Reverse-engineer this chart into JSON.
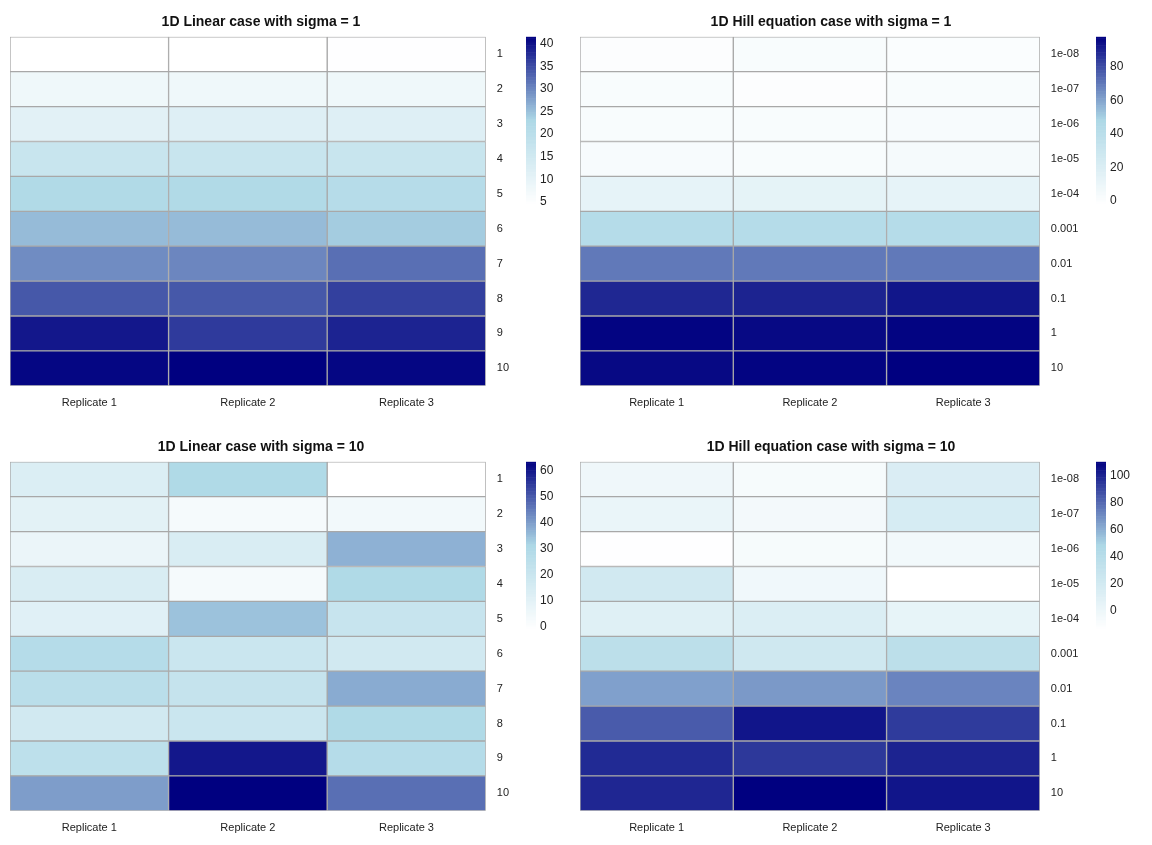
{
  "chart_data": [
    {
      "type": "heatmap",
      "title": "1D Linear case with sigma = 1",
      "categories": [
        "Replicate 1",
        "Replicate 2",
        "Replicate 3"
      ],
      "y_categories": [
        "1",
        "2",
        "3",
        "4",
        "5",
        "6",
        "7",
        "8",
        "9",
        "10"
      ],
      "cells": [
        [
          4.5,
          4.6,
          4.8
        ],
        [
          8,
          8,
          8
        ],
        [
          11,
          12,
          12
        ],
        [
          17,
          17,
          17
        ],
        [
          22,
          22,
          21
        ],
        [
          25.5,
          25.5,
          24
        ],
        [
          29.5,
          30,
          32
        ],
        [
          34,
          34,
          36
        ],
        [
          39.5,
          36.5,
          38.5
        ],
        [
          41,
          41.5,
          41
        ]
      ],
      "clim": [
        4.5,
        41.5
      ],
      "cticks": [
        5,
        10,
        15,
        20,
        25,
        30,
        35,
        40
      ]
    },
    {
      "type": "heatmap",
      "title": "1D Hill equation case with sigma = 1",
      "categories": [
        "Replicate 1",
        "Replicate 2",
        "Replicate 3"
      ],
      "y_categories": [
        "1e-08",
        "1e-07",
        "1e-06",
        "1e-05",
        "1e-04",
        "0.001",
        "0.01",
        "0.1",
        "1",
        "10"
      ],
      "cells": [
        [
          0,
          2,
          1
        ],
        [
          2,
          0,
          2
        ],
        [
          2,
          2,
          3
        ],
        [
          3,
          2,
          4
        ],
        [
          13,
          14,
          13
        ],
        [
          43,
          43,
          43
        ],
        [
          70,
          70,
          70
        ],
        [
          89,
          90,
          93
        ],
        [
          97,
          96,
          97
        ],
        [
          96,
          97,
          98
        ]
      ],
      "clim": [
        -2,
        98
      ],
      "cticks": [
        0,
        20,
        40,
        60,
        80
      ]
    },
    {
      "type": "heatmap",
      "title": "1D Linear case with sigma = 10",
      "categories": [
        "Replicate 1",
        "Replicate 2",
        "Replicate 3"
      ],
      "y_categories": [
        "1",
        "2",
        "3",
        "4",
        "5",
        "6",
        "7",
        "8",
        "9",
        "10"
      ],
      "cells": [
        [
          13,
          30,
          -1
        ],
        [
          10,
          3,
          4
        ],
        [
          7,
          14,
          37
        ],
        [
          14,
          3,
          30
        ],
        [
          11,
          34.5,
          21
        ],
        [
          28,
          20,
          17
        ],
        [
          26,
          22,
          38
        ],
        [
          17,
          20,
          30
        ],
        [
          25,
          60,
          28
        ],
        [
          40,
          63.5,
          47
        ]
      ],
      "clim": [
        -1,
        63.5
      ],
      "cticks": [
        0,
        10,
        20,
        30,
        40,
        50,
        60
      ]
    },
    {
      "type": "heatmap",
      "title": "1D Hill equation case with sigma = 10",
      "categories": [
        "Replicate 1",
        "Replicate 2",
        "Replicate 3"
      ],
      "y_categories": [
        "1e-08",
        "1e-07",
        "1e-06",
        "1e-05",
        "1e-04",
        "0.001",
        "0.01",
        "0.1",
        "1",
        "10"
      ],
      "cells": [
        [
          -2,
          -7,
          14
        ],
        [
          2,
          -5,
          17
        ],
        [
          -13,
          -7,
          -4
        ],
        [
          21,
          -3,
          -14
        ],
        [
          10,
          13,
          4
        ],
        [
          37,
          22,
          37
        ],
        [
          64,
          66,
          72
        ],
        [
          84,
          104,
          93
        ],
        [
          98,
          94,
          100
        ],
        [
          99,
          110,
          104
        ]
      ],
      "clim": [
        -14,
        110
      ],
      "cticks": [
        0,
        20,
        40,
        60,
        80,
        100
      ]
    }
  ]
}
